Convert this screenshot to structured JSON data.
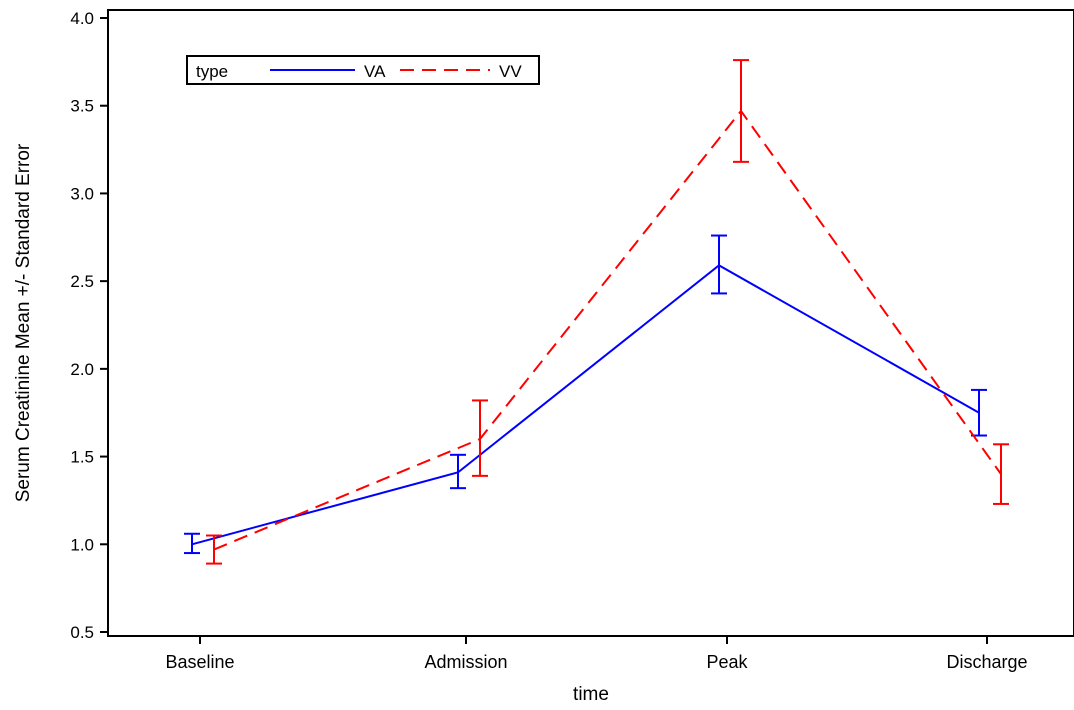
{
  "chart_data": {
    "type": "line",
    "title": "",
    "xlabel": "time",
    "ylabel": "Serum Creatinine Mean +/- Standard Error",
    "categories": [
      "Baseline",
      "Admission",
      "Peak",
      "Discharge"
    ],
    "ylim": [
      0.5,
      4.0
    ],
    "yticks": [
      "0.5",
      "1.0",
      "1.5",
      "2.0",
      "2.5",
      "3.0",
      "3.5",
      "4.0"
    ],
    "grid": false,
    "legend": {
      "title": "type",
      "position": "top-left"
    },
    "series": [
      {
        "name": "VA",
        "color": "#0000ff",
        "line_style": "solid",
        "values": [
          1.0,
          1.41,
          2.59,
          1.75
        ],
        "lower": [
          0.95,
          1.32,
          2.43,
          1.62
        ],
        "upper": [
          1.06,
          1.51,
          2.76,
          1.88
        ]
      },
      {
        "name": "VV",
        "color": "#ff0000",
        "line_style": "dashed",
        "values": [
          0.97,
          1.6,
          3.47,
          1.4
        ],
        "lower": [
          0.89,
          1.39,
          3.18,
          1.23
        ],
        "upper": [
          1.05,
          1.82,
          3.76,
          1.57
        ]
      }
    ]
  }
}
